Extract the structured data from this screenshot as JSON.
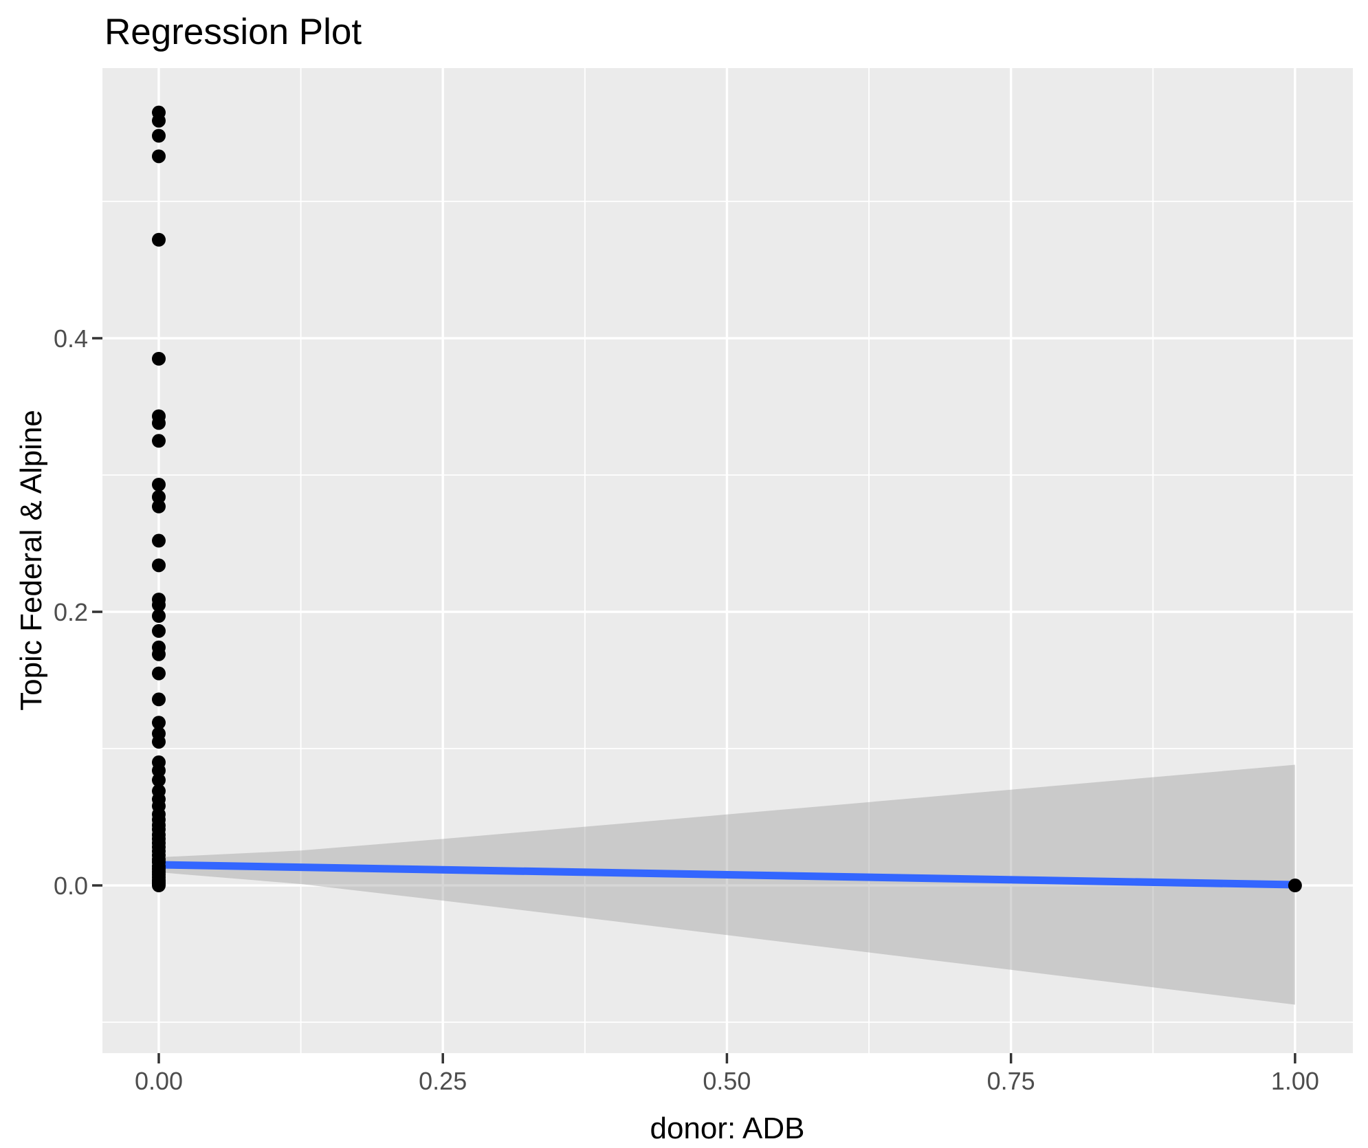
{
  "chart_data": {
    "type": "scatter",
    "title": "Regression Plot",
    "xlabel": "donor: ADB",
    "ylabel": "Topic Federal & Alpine",
    "legend": "none",
    "grid": true,
    "xlim": [
      -0.0496,
      1.0509
    ],
    "ylim": [
      -0.1226,
      0.5975
    ],
    "x_ticks": {
      "values": [
        0.0,
        0.25,
        0.5,
        0.75,
        1.0
      ],
      "labels": [
        "0.00",
        "0.25",
        "0.50",
        "0.75",
        "1.00"
      ]
    },
    "y_ticks": {
      "values": [
        0.0,
        0.2,
        0.4
      ],
      "labels": [
        "0.0",
        "0.2",
        "0.4"
      ]
    },
    "x_minor": [
      0.125,
      0.375,
      0.625,
      0.875
    ],
    "y_minor": [
      -0.1,
      0.1,
      0.3,
      0.5
    ],
    "colors": {
      "panel_bg": "#EBEBEB",
      "grid": "#FFFFFF",
      "point": "#000000",
      "line": "#3366FF",
      "band_fill": "#999999",
      "band_opacity": 0.4,
      "tick": "#333333",
      "tick_label": "#4D4D4D",
      "title": "#000000"
    },
    "series": [
      {
        "name": "observations",
        "type": "points",
        "x": [
          0,
          0,
          0,
          0,
          0,
          0,
          0,
          0,
          0,
          0,
          0,
          0,
          0,
          0,
          0,
          0,
          0,
          0,
          0,
          0,
          0,
          0,
          0,
          0,
          0,
          0,
          0,
          0,
          0,
          0,
          0,
          0,
          0,
          0,
          0,
          0,
          0,
          0,
          0,
          0,
          0,
          0,
          0,
          0,
          0,
          0,
          0,
          0,
          0,
          0,
          0,
          0,
          0,
          1
        ],
        "y": [
          0.565,
          0.559,
          0.548,
          0.533,
          0.472,
          0.385,
          0.343,
          0.338,
          0.325,
          0.293,
          0.284,
          0.277,
          0.252,
          0.234,
          0.209,
          0.205,
          0.197,
          0.186,
          0.174,
          0.169,
          0.155,
          0.136,
          0.119,
          0.111,
          0.105,
          0.09,
          0.084,
          0.077,
          0.069,
          0.063,
          0.058,
          0.052,
          0.048,
          0.044,
          0.041,
          0.037,
          0.034,
          0.031,
          0.028,
          0.025,
          0.022,
          0.019,
          0.017,
          0.014,
          0.012,
          0.01,
          0.008,
          0.006,
          0.004,
          0.003,
          0.002,
          0.001,
          0.0,
          0.0
        ]
      },
      {
        "name": "regression_fit",
        "type": "line",
        "x": [
          0,
          1
        ],
        "y": [
          0.0151,
          0.0005
        ]
      },
      {
        "name": "confidence_band",
        "type": "band",
        "x": [
          0.0,
          0.125,
          0.25,
          0.375,
          0.5,
          0.625,
          0.75,
          0.875,
          1.0
        ],
        "upper": [
          0.0206,
          0.0255,
          0.034,
          0.0429,
          0.0519,
          0.0609,
          0.07,
          0.0791,
          0.0882
        ],
        "lower": [
          0.0096,
          0.001,
          -0.0111,
          -0.0236,
          -0.0363,
          -0.049,
          -0.0617,
          -0.0745,
          -0.0872
        ]
      }
    ]
  }
}
